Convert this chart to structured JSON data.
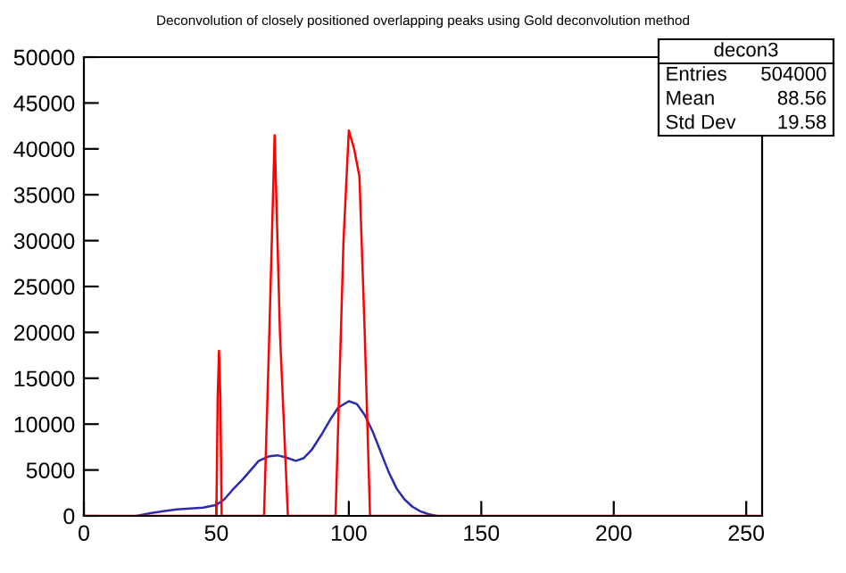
{
  "chart_data": {
    "type": "line",
    "title": "Deconvolution of closely positioned overlapping peaks using Gold deconvolution method",
    "series": [
      {
        "color": "#2b2bb0",
        "x": [
          20,
          25,
          30,
          35,
          40,
          45,
          50,
          53,
          56,
          60,
          63,
          66,
          70,
          73,
          76,
          80,
          83,
          86,
          90,
          93,
          96,
          100,
          103,
          106,
          109,
          112,
          115,
          118,
          121,
          124,
          127,
          130,
          133
        ],
        "values": [
          0,
          300,
          500,
          700,
          800,
          900,
          1200,
          1800,
          2800,
          4000,
          5000,
          6000,
          6500,
          6600,
          6400,
          6000,
          6300,
          7200,
          9000,
          10500,
          11800,
          12500,
          12200,
          11000,
          9200,
          7000,
          4800,
          3000,
          1800,
          1000,
          500,
          200,
          0
        ]
      },
      {
        "color": "#ff0000",
        "x": [
          0,
          50,
          50.5,
          51,
          51.5,
          52,
          68,
          70,
          72,
          74,
          77,
          95,
          98,
          100,
          102,
          104,
          106,
          108,
          256
        ],
        "values": [
          0,
          0,
          13000,
          18000,
          13000,
          0,
          0,
          20000,
          41500,
          20000,
          0,
          0,
          30000,
          42000,
          40000,
          37000,
          20000,
          0,
          0
        ]
      }
    ],
    "xlim": [
      0,
      256
    ],
    "xticks": [
      0,
      50,
      100,
      150,
      200,
      250
    ],
    "ylim": [
      0,
      50000
    ],
    "yticks": [
      0,
      5000,
      10000,
      15000,
      20000,
      25000,
      30000,
      35000,
      40000,
      45000,
      50000
    ],
    "grid": false,
    "legend": false,
    "annotations": [
      "decon3",
      "Entries",
      "504000",
      "Mean",
      "88.56",
      "Std Dev",
      "19.58"
    ]
  }
}
